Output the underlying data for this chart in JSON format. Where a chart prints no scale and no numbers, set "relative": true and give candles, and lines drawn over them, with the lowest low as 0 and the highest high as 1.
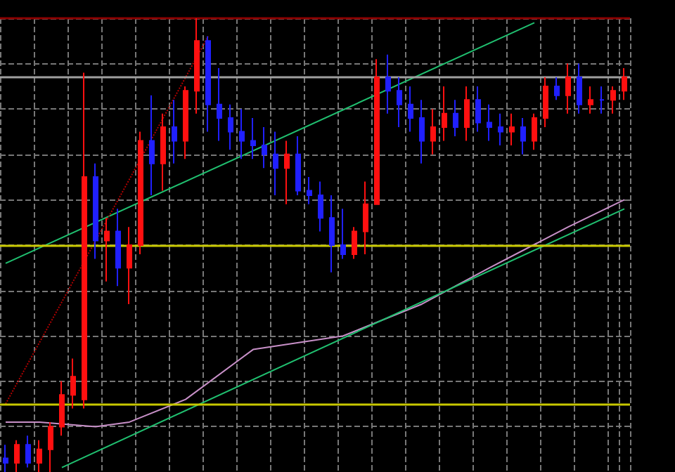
{
  "chart_data": {
    "type": "candlestick",
    "relative": true,
    "grid": true,
    "tick_labels": false,
    "categories": [
      null,
      null,
      null,
      null,
      null,
      null,
      null,
      null,
      null,
      null,
      null,
      null,
      null,
      null,
      null,
      null,
      null,
      null,
      null,
      null,
      null,
      null,
      null,
      null,
      null,
      null,
      null,
      null,
      null,
      null,
      null,
      null,
      null,
      null,
      null,
      null,
      null,
      null,
      null,
      null,
      null,
      null,
      null,
      null,
      null,
      null,
      null,
      null,
      null,
      null,
      null,
      null,
      null,
      null,
      null,
      null
    ],
    "ohlc": [
      [
        0.03,
        0.06,
        0,
        0.02
      ],
      [
        0.02,
        0.07,
        0,
        0.06
      ],
      [
        0.06,
        0.08,
        0.01,
        0.02
      ],
      [
        0.02,
        0.07,
        0,
        0.05
      ],
      [
        0.05,
        0.11,
        0,
        0.1
      ],
      [
        0.1,
        0.2,
        0.08,
        0.17
      ],
      [
        0.17,
        0.25,
        0.14,
        0.21
      ],
      [
        0.16,
        0.88,
        0.14,
        0.65
      ],
      [
        0.65,
        0.68,
        0.47,
        0.51
      ],
      [
        0.51,
        0.56,
        0.42,
        0.53
      ],
      [
        0.53,
        0.58,
        0.41,
        0.45
      ],
      [
        0.45,
        0.54,
        0.37,
        0.5
      ],
      [
        0.5,
        0.75,
        0.48,
        0.73
      ],
      [
        0.73,
        0.83,
        0.61,
        0.68
      ],
      [
        0.68,
        0.79,
        0.62,
        0.76
      ],
      [
        0.76,
        0.82,
        0.68,
        0.73
      ],
      [
        0.73,
        0.85,
        0.69,
        0.84
      ],
      [
        0.84,
        1,
        0.79,
        0.95
      ],
      [
        0.95,
        0.96,
        0.75,
        0.81
      ],
      [
        0.81,
        0.89,
        0.73,
        0.78
      ],
      [
        0.78,
        0.81,
        0.71,
        0.75
      ],
      [
        0.75,
        0.8,
        0.69,
        0.73
      ],
      [
        0.73,
        0.78,
        0.69,
        0.72
      ],
      [
        0.72,
        0.76,
        0.67,
        0.7
      ],
      [
        0.7,
        0.75,
        0.61,
        0.67
      ],
      [
        0.67,
        0.73,
        0.59,
        0.7
      ],
      [
        0.7,
        0.74,
        0.61,
        0.62
      ],
      [
        0.62,
        0.65,
        0.59,
        0.61
      ],
      [
        0.61,
        0.64,
        0.53,
        0.56
      ],
      [
        0.56,
        0.61,
        0.44,
        0.5
      ],
      [
        0.5,
        0.58,
        0.47,
        0.48
      ],
      [
        0.48,
        0.54,
        0.47,
        0.53
      ],
      [
        0.53,
        0.64,
        0.48,
        0.59
      ],
      [
        0.59,
        0.91,
        0.59,
        0.87
      ],
      [
        0.87,
        0.92,
        0.79,
        0.84
      ],
      [
        0.84,
        0.87,
        0.76,
        0.81
      ],
      [
        0.81,
        0.85,
        0.75,
        0.78
      ],
      [
        0.78,
        0.82,
        0.68,
        0.73
      ],
      [
        0.73,
        0.8,
        0.7,
        0.76
      ],
      [
        0.76,
        0.85,
        0.73,
        0.79
      ],
      [
        0.79,
        0.82,
        0.74,
        0.76
      ],
      [
        0.76,
        0.85,
        0.73,
        0.82
      ],
      [
        0.82,
        0.85,
        0.75,
        0.77
      ],
      [
        0.77,
        0.81,
        0.73,
        0.76
      ],
      [
        0.76,
        0.79,
        0.72,
        0.75
      ],
      [
        0.75,
        0.79,
        0.72,
        0.76
      ],
      [
        0.76,
        0.78,
        0.7,
        0.73
      ],
      [
        0.73,
        0.79,
        0.71,
        0.78
      ],
      [
        0.78,
        0.87,
        0.76,
        0.85
      ],
      [
        0.85,
        0.87,
        0.82,
        0.83
      ],
      [
        0.83,
        0.9,
        0.79,
        0.87
      ],
      [
        0.87,
        0.9,
        0.79,
        0.81
      ],
      [
        0.81,
        0.85,
        0.79,
        0.82
      ],
      [
        0.82,
        0.85,
        0.79,
        0.82
      ],
      [
        0.82,
        0.85,
        0.79,
        0.84
      ],
      [
        0.84,
        0.89,
        0.82,
        0.87
      ]
    ],
    "colors": [
      "#2020ff",
      "#ff1010",
      "#2020ff",
      "#ff1010",
      "#ff1010",
      "#ff1010",
      "#ff1010",
      "#ff1010",
      "#2020ff",
      "#ff1010",
      "#2020ff",
      "#ff1010",
      "#ff1010",
      "#2020ff",
      "#ff1010",
      "#2020ff",
      "#ff1010",
      "#ff1010",
      "#2020ff",
      "#2020ff",
      "#2020ff",
      "#2020ff",
      "#2020ff",
      "#2020ff",
      "#2020ff",
      "#ff1010",
      "#2020ff",
      "#2020ff",
      "#2020ff",
      "#2020ff",
      "#2020ff",
      "#ff1010",
      "#ff1010",
      "#ff1010",
      "#2020ff",
      "#2020ff",
      "#2020ff",
      "#2020ff",
      "#ff1010",
      "#ff1010",
      "#2020ff",
      "#ff1010",
      "#2020ff",
      "#2020ff",
      "#2020ff",
      "#ff1010",
      "#2020ff",
      "#ff1010",
      "#ff1010",
      "#2020ff",
      "#ff1010",
      "#2020ff",
      "#ff1010",
      "#2020ff",
      "#ff1010",
      "#ff1010"
    ],
    "series": [
      {
        "type": "line",
        "color": "#c890c8",
        "values": [
          0.11,
          null,
          null,
          0.11,
          null,
          null,
          null,
          null,
          0.1,
          null,
          null,
          0.11,
          null,
          null,
          null,
          null,
          0.16,
          null,
          null,
          null,
          null,
          null,
          0.27,
          null,
          null,
          null,
          null,
          null,
          null,
          null,
          0.3,
          null,
          null,
          null,
          null,
          null,
          null,
          0.37,
          null,
          null,
          null,
          null,
          null,
          0.45,
          null,
          null,
          null,
          null,
          null,
          null,
          0.54,
          null,
          null,
          null,
          null,
          0.6
        ]
      },
      {
        "type": "line",
        "color": "#20c070",
        "values": [
          0.46,
          null,
          null,
          null,
          null,
          null,
          null,
          null,
          null,
          null,
          null,
          null,
          null,
          null,
          null,
          null,
          null,
          null,
          null,
          null,
          null,
          null,
          null,
          null,
          null,
          null,
          null,
          null,
          null,
          null,
          null,
          null,
          null,
          null,
          null,
          null,
          null,
          null,
          null,
          null,
          null,
          null,
          null,
          null,
          null,
          null,
          null,
          0.99,
          null,
          null,
          null,
          null,
          null,
          null,
          null,
          null
        ]
      },
      {
        "type": "line",
        "color": "#20c070",
        "values": [
          null,
          null,
          null,
          null,
          null,
          0.01,
          null,
          null,
          null,
          null,
          null,
          null,
          null,
          null,
          null,
          null,
          null,
          null,
          null,
          null,
          null,
          null,
          null,
          null,
          null,
          null,
          null,
          null,
          null,
          null,
          null,
          null,
          null,
          null,
          null,
          null,
          null,
          null,
          null,
          null,
          null,
          null,
          null,
          null,
          null,
          null,
          null,
          null,
          null,
          null,
          null,
          null,
          null,
          null,
          null,
          0.58
        ]
      },
      {
        "type": "line",
        "color": "#b00000",
        "line_style": "dotted",
        "values": [
          0.15,
          null,
          null,
          null,
          null,
          null,
          null,
          null,
          null,
          null,
          null,
          null,
          null,
          null,
          null,
          null,
          null,
          null,
          0.96,
          null,
          null,
          null,
          null,
          null,
          null,
          null,
          null,
          null,
          null,
          null,
          null,
          null,
          null,
          null,
          null,
          null,
          null,
          null,
          null,
          null,
          null,
          null,
          null,
          null,
          null,
          null,
          null,
          null,
          null,
          null,
          null,
          null,
          null,
          null,
          null,
          null
        ]
      }
    ],
    "ref_lines": [
      {
        "axis": "y",
        "value": 1,
        "color": "#8b0000"
      },
      {
        "axis": "y",
        "value": 0.87,
        "color": "#a0a0a0"
      },
      {
        "axis": "y",
        "value": 0.5,
        "color": "#c8c800"
      },
      {
        "axis": "y",
        "value": 0.15,
        "color": "#c8c800"
      }
    ]
  }
}
